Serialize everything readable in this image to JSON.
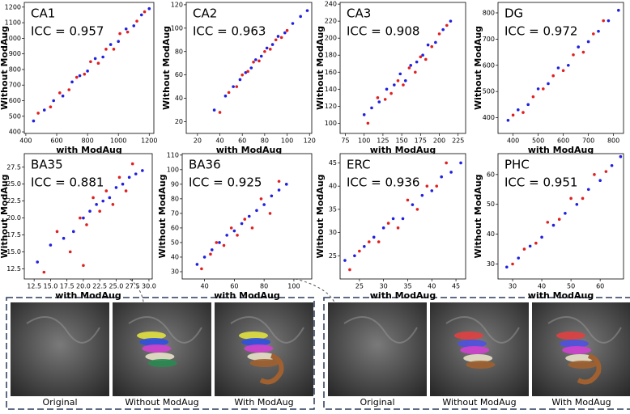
{
  "chart_data": [
    {
      "type": "scatter",
      "title": "CA1",
      "annotation": "ICC = 0.957",
      "xlabel": "with ModAug",
      "ylabel": "Without ModAug",
      "xlim": [
        390,
        1230
      ],
      "ylim": [
        390,
        1230
      ],
      "xticks": [
        400,
        600,
        800,
        1000,
        1200
      ],
      "yticks": [
        400,
        500,
        600,
        700,
        800,
        900,
        1000,
        1100,
        1200
      ],
      "series": [
        {
          "color": "#2020e0",
          "x": [
            450,
            520,
            580,
            640,
            700,
            750,
            800,
            850,
            900,
            950,
            1000,
            1050,
            1100,
            1150,
            1200
          ],
          "values": [
            470,
            540,
            600,
            630,
            720,
            760,
            790,
            870,
            880,
            960,
            980,
            1060,
            1080,
            1150,
            1190
          ]
        },
        {
          "color": "#e02020",
          "x": [
            480,
            560,
            620,
            680,
            730,
            780,
            820,
            870,
            920,
            970,
            1010,
            1060,
            1120,
            1170
          ],
          "values": [
            520,
            560,
            650,
            670,
            750,
            770,
            850,
            840,
            930,
            930,
            1030,
            1040,
            1110,
            1170
          ]
        }
      ]
    },
    {
      "type": "scatter",
      "title": "CA2",
      "annotation": "ICC = 0.963",
      "xlabel": "with ModAug",
      "ylabel": "Without ModAug",
      "xlim": [
        10,
        122
      ],
      "ylim": [
        10,
        122
      ],
      "xticks": [
        20,
        40,
        60,
        80,
        100,
        120
      ],
      "yticks": [
        20,
        40,
        60,
        80,
        100,
        120
      ],
      "series": [
        {
          "color": "#2020e0",
          "x": [
            35,
            45,
            52,
            58,
            63,
            68,
            72,
            77,
            82,
            87,
            92,
            98,
            105,
            112,
            118
          ],
          "values": [
            30,
            42,
            50,
            56,
            62,
            66,
            73,
            76,
            83,
            86,
            93,
            96,
            104,
            110,
            115
          ]
        },
        {
          "color": "#e02020",
          "x": [
            40,
            48,
            55,
            60,
            65,
            70,
            75,
            80,
            85,
            90,
            95,
            100
          ],
          "values": [
            28,
            45,
            50,
            60,
            63,
            71,
            72,
            80,
            82,
            90,
            92,
            98
          ]
        }
      ]
    },
    {
      "type": "scatter",
      "title": "CA3",
      "annotation": "ICC = 0.908",
      "xlabel": "with ModAug",
      "ylabel": "Without ModAug",
      "xlim": [
        68,
        235
      ],
      "ylim": [
        88,
        242
      ],
      "xticks": [
        75,
        100,
        125,
        150,
        175,
        200,
        225
      ],
      "yticks": [
        100,
        120,
        140,
        160,
        180,
        200,
        220,
        240
      ],
      "series": [
        {
          "color": "#2020e0",
          "x": [
            100,
            110,
            120,
            130,
            140,
            148,
            155,
            162,
            170,
            178,
            185,
            195,
            205,
            215
          ],
          "values": [
            110,
            118,
            125,
            140,
            145,
            158,
            150,
            168,
            172,
            180,
            192,
            195,
            210,
            220
          ]
        },
        {
          "color": "#e02020",
          "x": [
            105,
            118,
            128,
            136,
            145,
            152,
            160,
            168,
            175,
            182,
            190,
            200,
            210
          ],
          "values": [
            100,
            130,
            128,
            135,
            150,
            145,
            165,
            160,
            178,
            175,
            190,
            205,
            215
          ]
        }
      ]
    },
    {
      "type": "scatter",
      "title": "DG",
      "annotation": "ICC = 0.972",
      "xlabel": "with ModAug",
      "ylabel": "Without ModAug",
      "xlim": [
        340,
        840
      ],
      "ylim": [
        340,
        840
      ],
      "xticks": [
        400,
        500,
        600,
        700,
        800
      ],
      "yticks": [
        400,
        500,
        600,
        700,
        800
      ],
      "series": [
        {
          "color": "#2020e0",
          "x": [
            380,
            420,
            460,
            500,
            540,
            580,
            620,
            660,
            700,
            740,
            780,
            820
          ],
          "values": [
            390,
            430,
            450,
            510,
            530,
            590,
            600,
            670,
            690,
            730,
            770,
            810
          ]
        },
        {
          "color": "#e02020",
          "x": [
            400,
            440,
            480,
            520,
            560,
            600,
            640,
            680,
            720,
            760
          ],
          "values": [
            410,
            420,
            480,
            510,
            560,
            580,
            640,
            650,
            720,
            770
          ]
        }
      ]
    },
    {
      "type": "scatter",
      "title": "BA35",
      "annotation": "ICC = 0.881",
      "xlabel": "with ModAug",
      "ylabel": "Without ModAug",
      "xlim": [
        11,
        30.5
      ],
      "ylim": [
        11,
        29.5
      ],
      "xticks": [
        12.5,
        {
          "value": 15,
          "label": "15.0"
        },
        17.5,
        {
          "value": 20,
          "label": "20.0"
        },
        22.5,
        {
          "value": 25,
          "label": "25.0"
        },
        27.5,
        {
          "value": 30,
          "label": "30.0"
        }
      ],
      "yticks": [
        12.5,
        {
          "value": 15,
          "label": "15.0"
        },
        17.5,
        {
          "value": 20,
          "label": "20.0"
        },
        22.5,
        {
          "value": 25,
          "label": "25.0"
        },
        27.5
      ],
      "series": [
        {
          "color": "#2020e0",
          "x": [
            13,
            15,
            17,
            18.5,
            20,
            21,
            22,
            23,
            24,
            25,
            26,
            27,
            28,
            29
          ],
          "values": [
            13.5,
            16,
            17,
            18,
            20,
            21,
            22,
            22.5,
            23,
            24.5,
            25,
            26,
            26.5,
            27
          ]
        },
        {
          "color": "#e02020",
          "x": [
            14,
            16,
            18,
            19.5,
            20.5,
            21.5,
            22.5,
            23.5,
            24.5,
            25.5,
            26.5,
            27.5,
            20
          ],
          "values": [
            12,
            18,
            15,
            20,
            19,
            23,
            21,
            24,
            22,
            26,
            24,
            28,
            13
          ]
        }
      ]
    },
    {
      "type": "scatter",
      "title": "BA36",
      "annotation": "ICC = 0.925",
      "xlabel": "with ModAug",
      "ylabel": "Without ModAug",
      "xlim": [
        25,
        112
      ],
      "ylim": [
        25,
        111
      ],
      "xticks": [
        40,
        60,
        80,
        100
      ],
      "yticks": [
        30,
        40,
        50,
        60,
        70,
        80,
        90,
        100,
        110
      ],
      "series": [
        {
          "color": "#2020e0",
          "x": [
            35,
            40,
            45,
            50,
            55,
            60,
            65,
            70,
            75,
            80,
            85,
            90,
            95
          ],
          "values": [
            35,
            40,
            45,
            50,
            55,
            58,
            63,
            68,
            72,
            76,
            82,
            86,
            90
          ]
        },
        {
          "color": "#e02020",
          "x": [
            38,
            44,
            48,
            53,
            58,
            62,
            67,
            72,
            78,
            84,
            90
          ],
          "values": [
            32,
            42,
            50,
            48,
            60,
            55,
            66,
            60,
            80,
            70,
            92
          ]
        }
      ]
    },
    {
      "type": "scatter",
      "title": "ERC",
      "annotation": "ICC = 0.936",
      "xlabel": "with ModAug",
      "ylabel": "Without ModAug",
      "xlim": [
        21,
        47
      ],
      "ylim": [
        20,
        47
      ],
      "xticks": [
        25,
        30,
        35,
        40,
        45
      ],
      "yticks": [
        25,
        30,
        35,
        40,
        45
      ],
      "series": [
        {
          "color": "#2020e0",
          "x": [
            22,
            24,
            26,
            28,
            30,
            32,
            34,
            36,
            38,
            40,
            42,
            44,
            46
          ],
          "values": [
            24,
            25,
            27,
            29,
            31,
            33,
            33,
            36,
            38,
            39,
            42,
            43,
            45
          ]
        },
        {
          "color": "#e02020",
          "x": [
            23,
            25,
            27,
            29,
            31,
            33,
            35,
            37,
            39,
            41,
            43
          ],
          "values": [
            22,
            26,
            28,
            28,
            32,
            31,
            37,
            35,
            40,
            40,
            45
          ]
        }
      ]
    },
    {
      "type": "scatter",
      "title": "PHC",
      "annotation": "ICC = 0.951",
      "xlabel": "with ModAug",
      "ylabel": "Without ModAug",
      "xlim": [
        25,
        68
      ],
      "ylim": [
        25,
        67
      ],
      "xticks": [
        30,
        40,
        50,
        60
      ],
      "yticks": [
        30,
        40,
        50,
        60
      ],
      "series": [
        {
          "color": "#2020e0",
          "x": [
            28,
            32,
            36,
            40,
            44,
            48,
            52,
            56,
            60,
            64,
            67
          ],
          "values": [
            29,
            32,
            36,
            39,
            43,
            47,
            50,
            55,
            58,
            63,
            66
          ]
        },
        {
          "color": "#e02020",
          "x": [
            30,
            34,
            38,
            42,
            46,
            50,
            54,
            58,
            62
          ],
          "values": [
            30,
            35,
            37,
            44,
            45,
            52,
            52,
            60,
            61
          ]
        }
      ]
    }
  ],
  "image_panels": [
    {
      "captions": [
        "Original",
        "Without ModAug",
        "With ModAug"
      ]
    },
    {
      "captions": [
        "Original",
        "Without ModAug",
        "With ModAug"
      ]
    }
  ]
}
